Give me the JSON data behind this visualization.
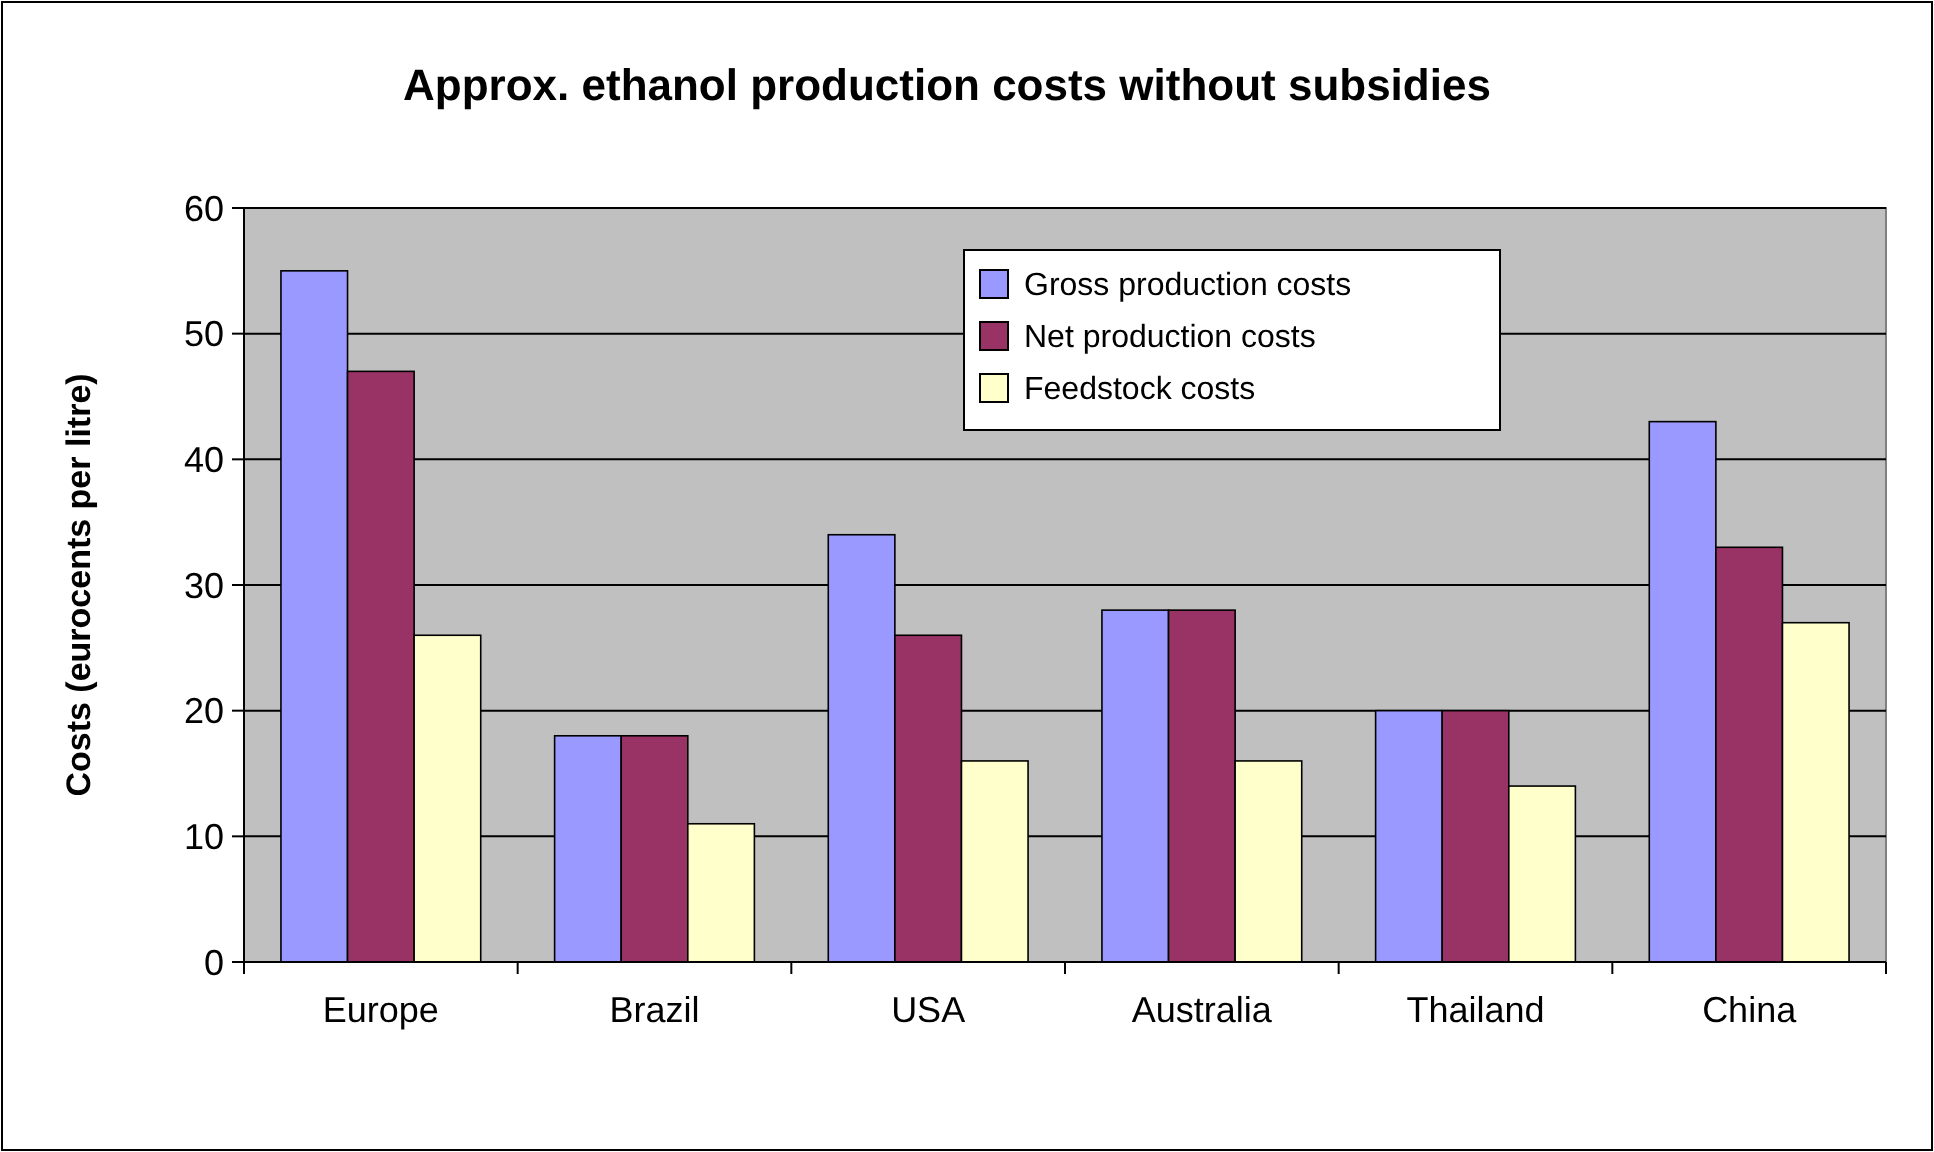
{
  "chart_data": {
    "type": "bar",
    "title": "Approx. ethanol production costs without subsidies",
    "ylabel": "Costs (eurocents per litre)",
    "categories": [
      "Europe",
      "Brazil",
      "USA",
      "Australia",
      "Thailand",
      "China"
    ],
    "series": [
      {
        "name": "Gross production costs",
        "color": "#9999ff",
        "values": [
          55,
          18,
          34,
          28,
          20,
          43
        ]
      },
      {
        "name": "Net production costs",
        "color": "#993366",
        "values": [
          47,
          18,
          26,
          28,
          20,
          33
        ]
      },
      {
        "name": "Feedstock costs",
        "color": "#ffffcc",
        "values": [
          26,
          11,
          16,
          16,
          14,
          27
        ]
      }
    ],
    "ylim": [
      0,
      60
    ],
    "yticks": [
      0,
      10,
      20,
      30,
      40,
      50,
      60
    ],
    "grid": "y",
    "legend": "top right"
  }
}
